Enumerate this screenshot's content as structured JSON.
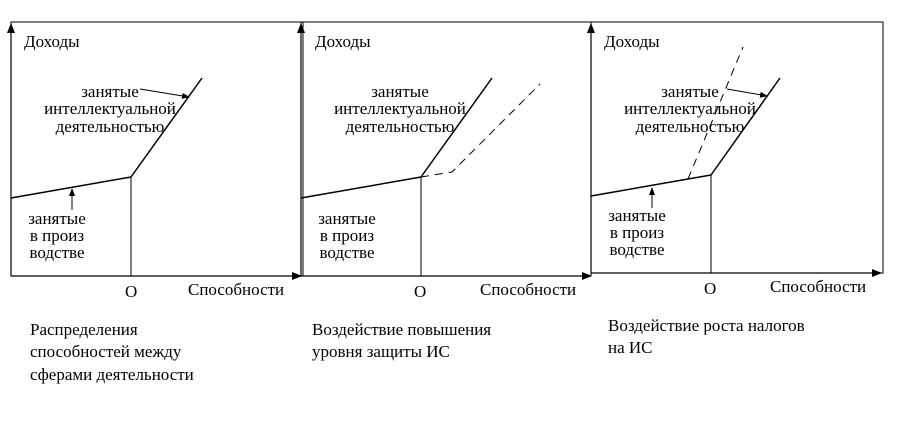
{
  "panels": [
    {
      "y_axis_label": "Доходы",
      "x_axis_label": "Способности",
      "origin_label": "О",
      "upper_label": [
        "занятые",
        "интеллектуальной",
        "деятельностью"
      ],
      "lower_label": [
        "занятые",
        "в произ",
        "водстве"
      ],
      "caption": [
        "Распределения",
        "способностей между",
        "сферами деятельности"
      ]
    },
    {
      "y_axis_label": "Доходы",
      "x_axis_label": "Способности",
      "origin_label": "О",
      "upper_label": [
        "занятые",
        "интеллектуальной",
        "деятельностью"
      ],
      "lower_label": [
        "занятые",
        "в произ",
        "водстве"
      ],
      "caption": [
        "Воздействие  повышения",
        "уровня защиты ИС"
      ]
    },
    {
      "y_axis_label": "Доходы",
      "x_axis_label": "Способности",
      "origin_label": "О",
      "upper_label": [
        "занятые",
        "интеллектуальной",
        "деятельностью"
      ],
      "lower_label": [
        "занятые",
        "в произ",
        "водстве"
      ],
      "caption": [
        "Воздействие роста налогов",
        "на ИС"
      ]
    }
  ],
  "colors": {
    "ink": "#000000",
    "background": "#ffffff"
  }
}
